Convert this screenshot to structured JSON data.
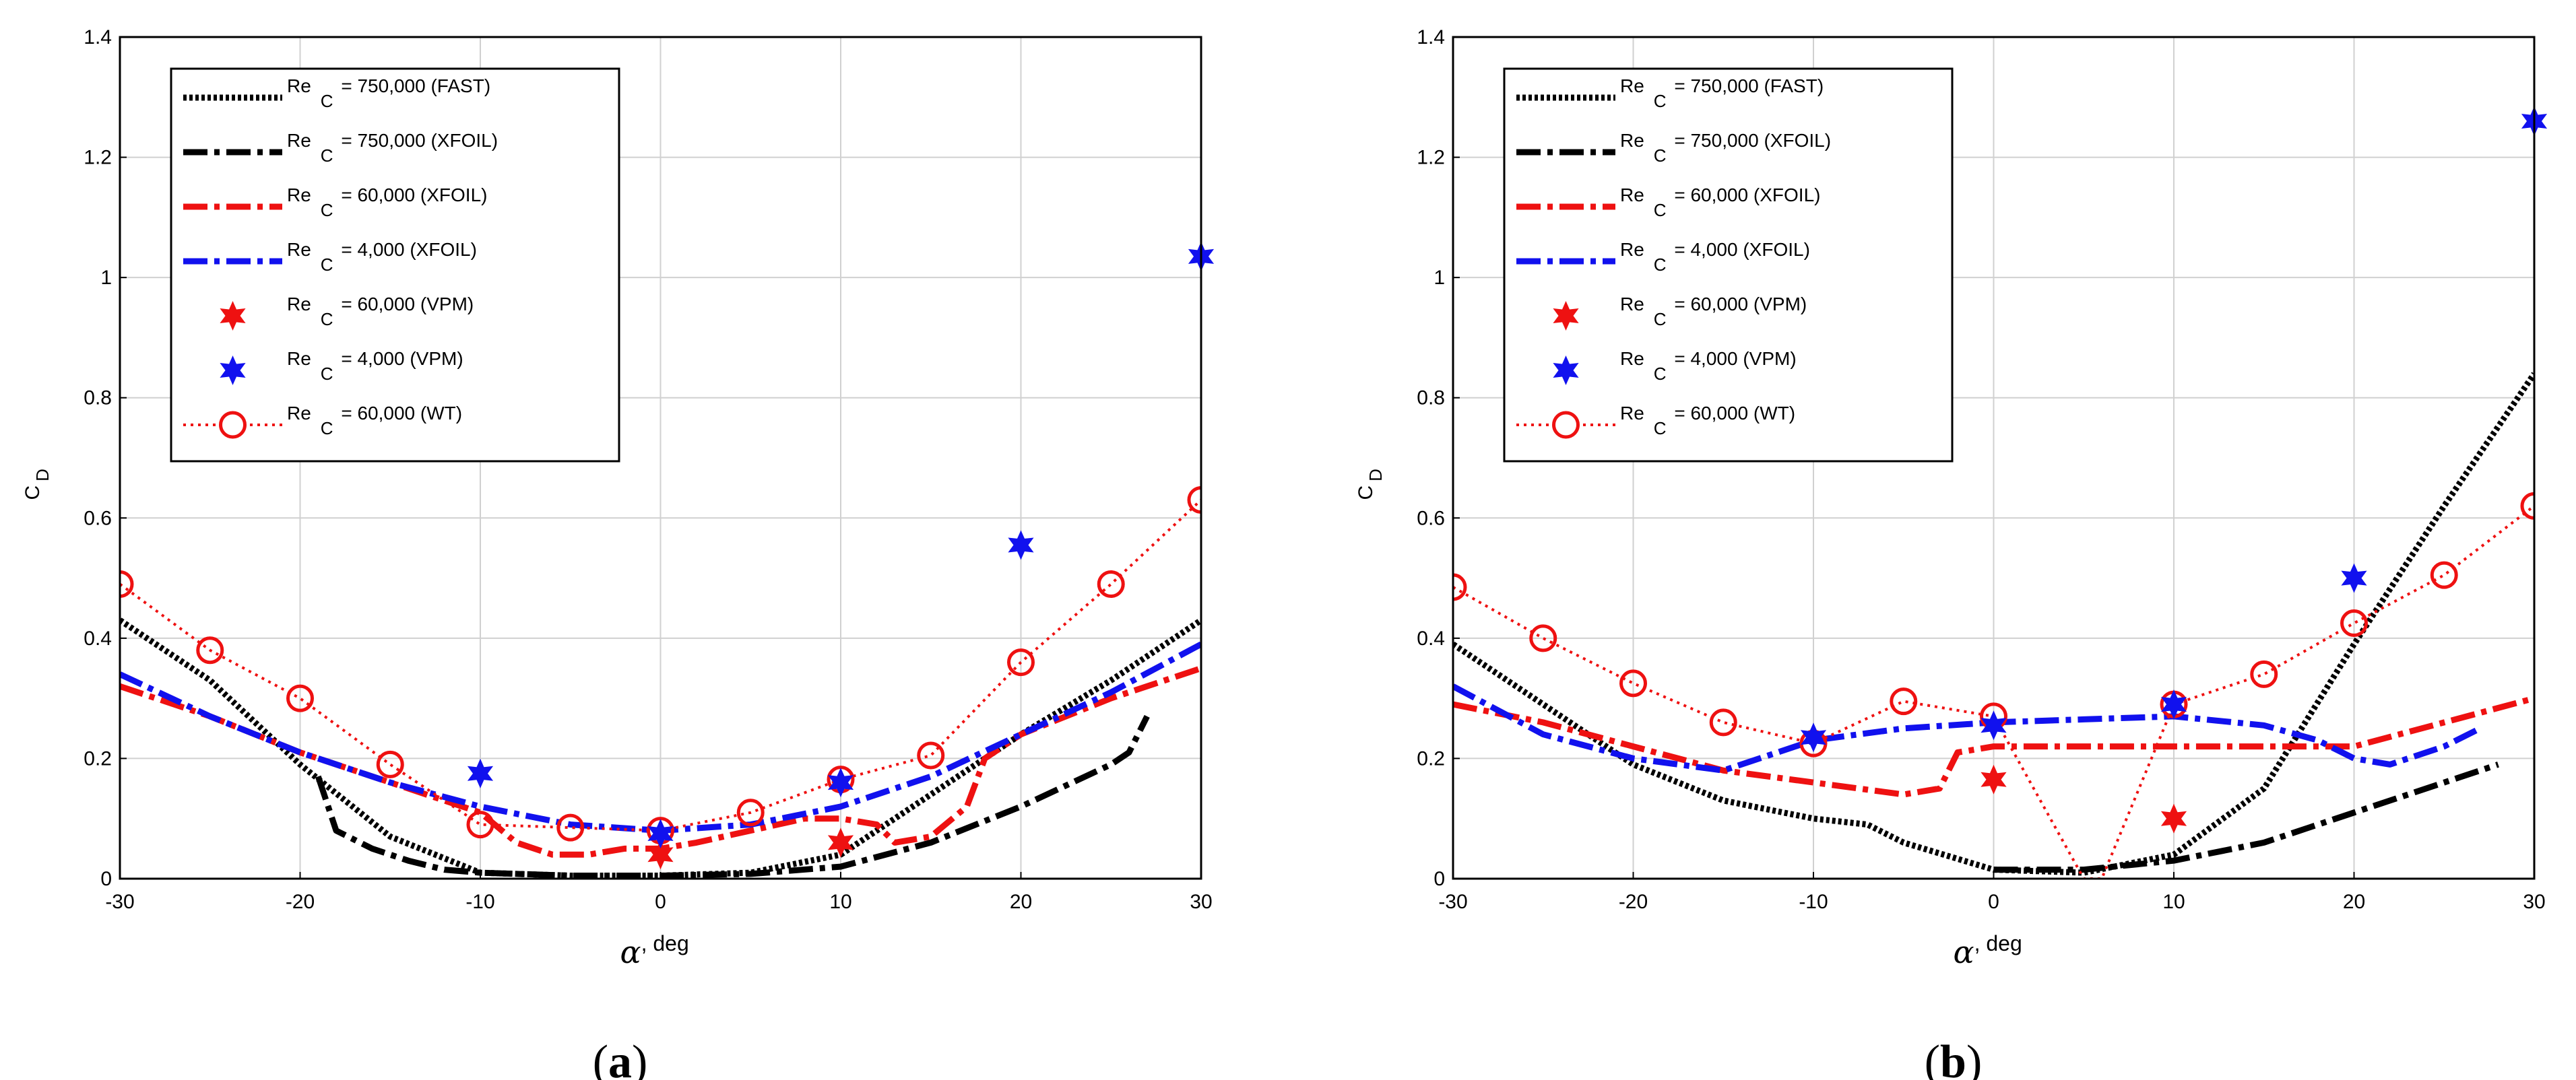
{
  "chart_data": [
    {
      "type": "line",
      "panel_label": "(a)",
      "xlabel": {
        "symbol": "α",
        "rest": ", deg"
      },
      "ylabel": {
        "main": "C",
        "sub": "D"
      },
      "xlim": [
        -30,
        30
      ],
      "ylim": [
        0,
        1.4
      ],
      "xticks": [
        -30,
        -20,
        -10,
        0,
        10,
        20,
        30
      ],
      "yticks": [
        0,
        0.2,
        0.4,
        0.6,
        0.8,
        1,
        1.2,
        1.4
      ],
      "grid": true,
      "legend_position": "top-left",
      "series": [
        {
          "id": "fast750",
          "label": "Re",
          "sub": "C",
          "rest": " = 750,000 (FAST)",
          "style": "dotted",
          "color": "#000000",
          "x": [
            -30,
            -25,
            -20,
            -15,
            -10,
            -5,
            0,
            5,
            10,
            15,
            20,
            25,
            30
          ],
          "y": [
            0.43,
            0.33,
            0.19,
            0.07,
            0.01,
            0.005,
            0.005,
            0.01,
            0.04,
            0.14,
            0.24,
            0.33,
            0.43
          ]
        },
        {
          "id": "xfoil750",
          "label": "Re",
          "sub": "C",
          "rest": " = 750,000 (XFOIL)",
          "style": "dashdot",
          "color": "#000000",
          "x": [
            -19,
            -18,
            -16,
            -14,
            -12,
            -10,
            -5,
            0,
            5,
            10,
            15,
            20,
            25,
            26,
            27
          ],
          "y": [
            0.17,
            0.08,
            0.05,
            0.03,
            0.015,
            0.01,
            0.005,
            0.005,
            0.008,
            0.02,
            0.06,
            0.12,
            0.19,
            0.21,
            0.27
          ]
        },
        {
          "id": "xfoil60k",
          "label": "Re",
          "sub": "C",
          "rest": " = 60,000 (XFOIL)",
          "style": "dashdot",
          "color": "#ee1111",
          "x": [
            -30,
            -25,
            -20,
            -15,
            -10,
            -8,
            -6,
            -4,
            -2,
            0,
            2,
            5,
            8,
            10,
            12,
            13,
            15,
            17,
            18,
            20,
            25,
            30
          ],
          "y": [
            0.32,
            0.27,
            0.21,
            0.16,
            0.11,
            0.06,
            0.04,
            0.04,
            0.05,
            0.05,
            0.06,
            0.08,
            0.1,
            0.1,
            0.09,
            0.06,
            0.07,
            0.12,
            0.2,
            0.24,
            0.3,
            0.35
          ]
        },
        {
          "id": "xfoil4k",
          "label": "Re",
          "sub": "C",
          "rest": " = 4,000 (XFOIL)",
          "style": "dashdot",
          "color": "#1111ee",
          "x": [
            -30,
            -25,
            -20,
            -15,
            -10,
            -5,
            0,
            5,
            10,
            15,
            20,
            25,
            30
          ],
          "y": [
            0.34,
            0.27,
            0.21,
            0.16,
            0.12,
            0.09,
            0.08,
            0.09,
            0.12,
            0.17,
            0.24,
            0.31,
            0.39
          ]
        },
        {
          "id": "vpm60k",
          "label": "Re",
          "sub": "C",
          "rest": " = 60,000 (VPM)",
          "style": "star",
          "color": "#ee1111",
          "x": [
            0,
            10
          ],
          "y": [
            0.04,
            0.06
          ]
        },
        {
          "id": "vpm4k",
          "label": "Re",
          "sub": "C",
          "rest": " = 4,000 (VPM)",
          "style": "star",
          "color": "#1111ee",
          "x": [
            -10,
            0,
            10,
            20,
            30
          ],
          "y": [
            0.175,
            0.075,
            0.16,
            0.555,
            1.035
          ]
        },
        {
          "id": "wt60k",
          "label": "Re",
          "sub": "C",
          "rest": " = 60,000 (WT)",
          "style": "dotted-circle",
          "color": "#ee1111",
          "x": [
            -30,
            -25,
            -20,
            -15,
            -10,
            -5,
            0,
            5,
            10,
            15,
            20,
            25,
            30
          ],
          "y": [
            0.49,
            0.38,
            0.3,
            0.19,
            0.09,
            0.085,
            0.08,
            0.11,
            0.165,
            0.205,
            0.36,
            0.49,
            0.63
          ]
        }
      ]
    },
    {
      "type": "line",
      "panel_label": "(b)",
      "xlabel": {
        "symbol": "α",
        "rest": ", deg"
      },
      "ylabel": {
        "main": "C",
        "sub": "D"
      },
      "xlim": [
        -30,
        30
      ],
      "ylim": [
        0,
        1.4
      ],
      "xticks": [
        -30,
        -20,
        -10,
        0,
        10,
        20,
        30
      ],
      "yticks": [
        0,
        0.2,
        0.4,
        0.6,
        0.8,
        1,
        1.2,
        1.4
      ],
      "grid": true,
      "legend_position": "top-left",
      "series": [
        {
          "id": "fast750",
          "label": "Re",
          "sub": "C",
          "rest": " = 750,000 (FAST)",
          "style": "dotted",
          "color": "#000000",
          "x": [
            -30,
            -25,
            -20,
            -15,
            -10,
            -7,
            -5,
            0,
            5,
            10,
            15,
            20,
            25,
            30
          ],
          "y": [
            0.39,
            0.29,
            0.19,
            0.13,
            0.1,
            0.09,
            0.06,
            0.015,
            0.01,
            0.04,
            0.15,
            0.39,
            0.62,
            0.84
          ]
        },
        {
          "id": "xfoil750",
          "label": "Re",
          "sub": "C",
          "rest": " = 750,000 (XFOIL)",
          "style": "dashdot",
          "color": "#000000",
          "x": [
            0,
            5,
            10,
            15,
            20,
            25,
            28
          ],
          "y": [
            0.015,
            0.015,
            0.03,
            0.06,
            0.11,
            0.16,
            0.19
          ]
        },
        {
          "id": "xfoil60k",
          "label": "Re",
          "sub": "C",
          "rest": " = 60,000 (XFOIL)",
          "style": "dashdot",
          "color": "#ee1111",
          "x": [
            -30,
            -25,
            -20,
            -15,
            -10,
            -5,
            -3,
            -2,
            0,
            5,
            10,
            15,
            20,
            25,
            30
          ],
          "y": [
            0.29,
            0.26,
            0.22,
            0.18,
            0.16,
            0.14,
            0.15,
            0.21,
            0.22,
            0.22,
            0.22,
            0.22,
            0.22,
            0.26,
            0.3
          ]
        },
        {
          "id": "xfoil4k",
          "label": "Re",
          "sub": "C",
          "rest": " = 4,000 (XFOIL)",
          "style": "dashdot",
          "color": "#1111ee",
          "x": [
            -30,
            -25,
            -20,
            -15,
            -10,
            -5,
            0,
            5,
            10,
            15,
            18,
            20,
            22,
            25,
            27
          ],
          "y": [
            0.32,
            0.24,
            0.2,
            0.18,
            0.23,
            0.25,
            0.26,
            0.265,
            0.27,
            0.255,
            0.23,
            0.2,
            0.19,
            0.22,
            0.25
          ]
        },
        {
          "id": "vpm60k",
          "label": "Re",
          "sub": "C",
          "rest": " = 60,000 (VPM)",
          "style": "star",
          "color": "#ee1111",
          "x": [
            0,
            10
          ],
          "y": [
            0.165,
            0.1
          ]
        },
        {
          "id": "vpm4k",
          "label": "Re",
          "sub": "C",
          "rest": " = 4,000 (VPM)",
          "style": "star",
          "color": "#1111ee",
          "x": [
            -10,
            0,
            10,
            20,
            30
          ],
          "y": [
            0.235,
            0.255,
            0.29,
            0.5,
            1.26
          ]
        },
        {
          "id": "wt60k",
          "label": "Re",
          "sub": "C",
          "rest": " = 60,000 (WT)",
          "style": "dotted-circle",
          "color": "#ee1111",
          "x": [
            -30,
            -25,
            -20,
            -15,
            -10,
            -5,
            0,
            5,
            6,
            10,
            15,
            20,
            25,
            30
          ],
          "y": [
            0.485,
            0.4,
            0.325,
            0.26,
            0.225,
            0.295,
            0.27,
            0,
            0,
            0.29,
            0.34,
            0.425,
            0.505,
            0.62
          ],
          "markers": [
            true,
            true,
            true,
            true,
            true,
            true,
            true,
            false,
            false,
            true,
            true,
            true,
            true,
            true
          ]
        }
      ]
    }
  ]
}
